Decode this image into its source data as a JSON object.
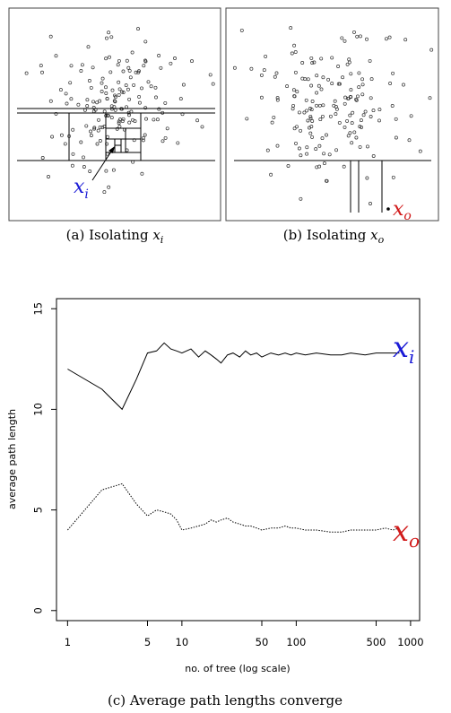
{
  "panel_a": {
    "caption": "(a) Isolating ",
    "caption_var": "x",
    "caption_sub": "i",
    "point_label": "x",
    "point_label_sub": "i",
    "point_color": "#1a1ad6"
  },
  "panel_b": {
    "caption": "(b) Isolating ",
    "caption_var": "x",
    "caption_sub": "o",
    "point_label": "x",
    "point_label_sub": "o",
    "point_color": "#d11a1a"
  },
  "panel_c": {
    "caption": "(c) Average path lengths converge"
  },
  "chart_data": {
    "type": "line",
    "xlabel": "no. of tree (log scale)",
    "ylabel": "average path length",
    "x_scale": "log",
    "xlim": [
      0.8,
      1200
    ],
    "ylim": [
      -0.5,
      15.5
    ],
    "x_ticks": [
      1,
      5,
      10,
      50,
      100,
      500,
      1000
    ],
    "x_tick_labels": [
      "1",
      "5",
      "10",
      "50",
      "100",
      "500",
      "1000"
    ],
    "y_ticks": [
      0,
      5,
      10,
      15
    ],
    "y_tick_labels": [
      "0",
      "5",
      "10",
      "15"
    ],
    "grid": false,
    "series": [
      {
        "name": "x",
        "name_sub": "i",
        "color": "#1a1ad6",
        "line_style": "solid",
        "x": [
          1,
          2,
          3,
          4,
          5,
          6,
          7,
          8,
          9,
          10,
          12,
          14,
          16,
          18,
          20,
          22,
          25,
          28,
          32,
          36,
          40,
          45,
          50,
          60,
          70,
          80,
          90,
          100,
          120,
          150,
          200,
          250,
          300,
          400,
          500,
          600,
          700,
          800
        ],
        "y": [
          12.0,
          11.0,
          10.0,
          11.5,
          12.8,
          12.9,
          13.3,
          13.0,
          12.9,
          12.8,
          13.0,
          12.6,
          12.9,
          12.7,
          12.5,
          12.3,
          12.7,
          12.8,
          12.6,
          12.9,
          12.7,
          12.8,
          12.6,
          12.8,
          12.7,
          12.8,
          12.7,
          12.8,
          12.7,
          12.8,
          12.7,
          12.7,
          12.8,
          12.7,
          12.8,
          12.8,
          12.8,
          12.8
        ]
      },
      {
        "name": "x",
        "name_sub": "o",
        "color": "#d11a1a",
        "line_style": "dotted",
        "x": [
          1,
          2,
          3,
          4,
          5,
          6,
          7,
          8,
          9,
          10,
          12,
          14,
          16,
          18,
          20,
          22,
          25,
          28,
          32,
          36,
          40,
          45,
          50,
          60,
          70,
          80,
          90,
          100,
          120,
          150,
          200,
          250,
          300,
          400,
          500,
          600,
          700,
          800
        ],
        "y": [
          4.0,
          6.0,
          6.3,
          5.3,
          4.7,
          5.0,
          4.9,
          4.8,
          4.5,
          4.0,
          4.1,
          4.2,
          4.3,
          4.5,
          4.4,
          4.5,
          4.6,
          4.4,
          4.3,
          4.2,
          4.2,
          4.1,
          4.0,
          4.1,
          4.1,
          4.2,
          4.1,
          4.1,
          4.0,
          4.0,
          3.9,
          3.9,
          4.0,
          4.0,
          4.0,
          4.1,
          4.0,
          4.1
        ]
      }
    ]
  }
}
